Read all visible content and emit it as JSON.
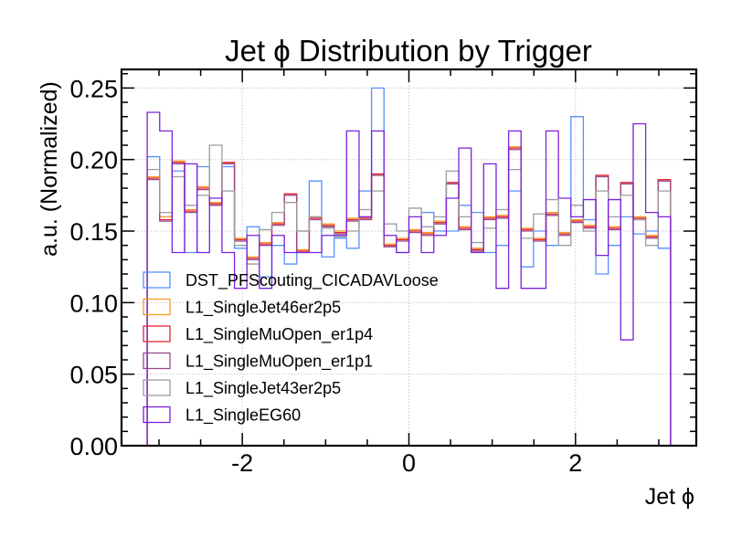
{
  "chart_data": {
    "type": "histogram-step",
    "title": "Jet ϕ Distribution by Trigger",
    "xlabel": "Jet ϕ",
    "ylabel": "a.u. (Normalized)",
    "xlim": [
      -3.45,
      3.45
    ],
    "ylim": [
      0,
      0.263
    ],
    "xticks": [
      -2,
      0,
      2
    ],
    "xtick_labels": [
      "-2",
      "0",
      "2"
    ],
    "yticks": [
      0.0,
      0.05,
      0.1,
      0.15,
      0.2,
      0.25
    ],
    "ytick_labels": [
      "0.00",
      "0.05",
      "0.10",
      "0.15",
      "0.20",
      "0.25"
    ],
    "grid": true,
    "legend_position": "lower-left",
    "x_range": [
      -3.1416,
      3.1416
    ],
    "n_bins": 42,
    "series": [
      {
        "name": "DST_PFScouting_CICADAVLoose",
        "color": "#5790fc",
        "values": [
          0.202,
          0.16,
          0.192,
          0.135,
          0.195,
          0.17,
          0.195,
          0.138,
          0.153,
          0.118,
          0.14,
          0.127,
          0.15,
          0.185,
          0.132,
          0.145,
          0.138,
          0.178,
          0.25,
          0.14,
          0.135,
          0.15,
          0.163,
          0.15,
          0.15,
          0.168,
          0.163,
          0.135,
          0.14,
          0.178,
          0.125,
          0.15,
          0.14,
          0.148,
          0.23,
          0.158,
          0.12,
          0.14,
          0.16,
          0.148,
          0.15,
          0.138
        ]
      },
      {
        "name": "L1_SingleJet46er2p5",
        "color": "#f89c20",
        "values": [
          0.188,
          0.16,
          0.199,
          0.165,
          0.181,
          0.17,
          0.197,
          0.145,
          0.132,
          0.142,
          0.156,
          0.175,
          0.137,
          0.16,
          0.155,
          0.15,
          0.159,
          0.16,
          0.189,
          0.141,
          0.145,
          0.151,
          0.149,
          0.157,
          0.183,
          0.153,
          0.138,
          0.16,
          0.161,
          0.209,
          0.152,
          0.145,
          0.163,
          0.149,
          0.158,
          0.154,
          0.188,
          0.153,
          0.183,
          0.16,
          0.147,
          0.186
        ]
      },
      {
        "name": "L1_SingleMuOpen_er1p4",
        "color": "#e42536",
        "values": [
          0.187,
          0.158,
          0.198,
          0.164,
          0.18,
          0.169,
          0.198,
          0.144,
          0.131,
          0.141,
          0.155,
          0.176,
          0.136,
          0.159,
          0.154,
          0.149,
          0.158,
          0.159,
          0.19,
          0.14,
          0.144,
          0.15,
          0.148,
          0.156,
          0.184,
          0.152,
          0.137,
          0.159,
          0.16,
          0.208,
          0.151,
          0.144,
          0.162,
          0.148,
          0.157,
          0.153,
          0.189,
          0.152,
          0.184,
          0.159,
          0.146,
          0.186
        ]
      },
      {
        "name": "L1_SingleMuOpen_er1p1",
        "color": "#964a8b",
        "values": [
          0.186,
          0.157,
          0.197,
          0.163,
          0.179,
          0.168,
          0.197,
          0.143,
          0.13,
          0.14,
          0.154,
          0.175,
          0.135,
          0.158,
          0.153,
          0.148,
          0.157,
          0.158,
          0.189,
          0.139,
          0.143,
          0.149,
          0.147,
          0.155,
          0.183,
          0.151,
          0.136,
          0.158,
          0.159,
          0.207,
          0.15,
          0.143,
          0.161,
          0.147,
          0.156,
          0.152,
          0.188,
          0.151,
          0.183,
          0.158,
          0.145,
          0.185
        ]
      },
      {
        "name": "L1_SingleJet43er2p5",
        "color": "#9c9ca1",
        "values": [
          0.193,
          0.163,
          0.188,
          0.168,
          0.175,
          0.21,
          0.178,
          0.14,
          0.127,
          0.151,
          0.163,
          0.17,
          0.15,
          0.16,
          0.152,
          0.146,
          0.15,
          0.165,
          0.178,
          0.155,
          0.15,
          0.166,
          0.153,
          0.16,
          0.192,
          0.16,
          0.142,
          0.152,
          0.165,
          0.193,
          0.145,
          0.162,
          0.172,
          0.14,
          0.168,
          0.15,
          0.178,
          0.16,
          0.175,
          0.158,
          0.14,
          0.178
        ]
      },
      {
        "name": "L1_SingleEG60",
        "color": "#7a21dd",
        "values": [
          0.233,
          0.22,
          0.135,
          0.197,
          0.135,
          0.173,
          0.135,
          0.11,
          0.147,
          0.11,
          0.147,
          0.135,
          0.135,
          0.135,
          0.147,
          0.147,
          0.22,
          0.16,
          0.22,
          0.147,
          0.135,
          0.16,
          0.135,
          0.147,
          0.173,
          0.208,
          0.135,
          0.197,
          0.11,
          0.22,
          0.11,
          0.11,
          0.22,
          0.173,
          0.16,
          0.172,
          0.133,
          0.172,
          0.074,
          0.225,
          0.163,
          0.16
        ]
      }
    ]
  }
}
